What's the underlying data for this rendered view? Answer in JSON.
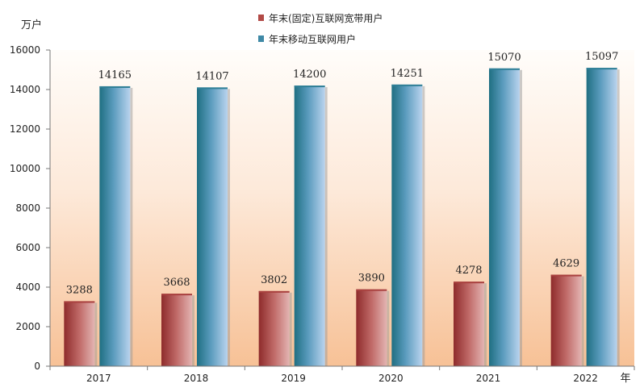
{
  "chart_data": {
    "type": "bar",
    "y_unit": "万户",
    "x_unit": "年",
    "categories": [
      "2017",
      "2018",
      "2019",
      "2020",
      "2021",
      "2022"
    ],
    "series": [
      {
        "name": "年末(固定)互联网宽带用户",
        "values": [
          3288,
          3668,
          3802,
          3890,
          4278,
          4629
        ],
        "color": "#b24a46"
      },
      {
        "name": "年末移动互联网用户",
        "values": [
          14165,
          14107,
          14200,
          14251,
          15070,
          15097
        ],
        "color": "#3f89a6"
      }
    ],
    "ylim": [
      0,
      16000
    ],
    "yticks": [
      0,
      2000,
      4000,
      6000,
      8000,
      10000,
      12000,
      14000,
      16000
    ],
    "legend_position": "top-center",
    "background": "gradient peach"
  }
}
